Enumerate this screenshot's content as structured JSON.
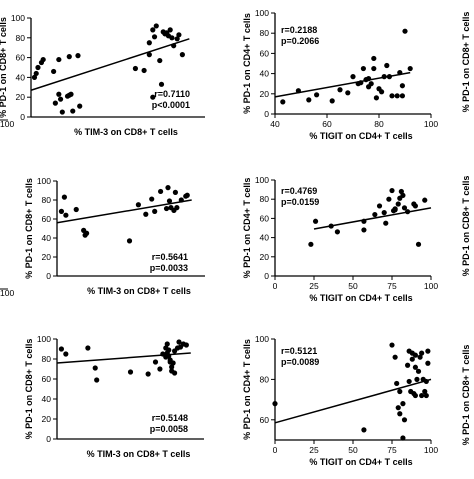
{
  "edge_labels": {
    "left_ticks": [
      "100",
      "100"
    ],
    "right_ylabels": [
      "% PD-1 on CD8+ T cells",
      "% PD-1 on CD8+ T cells",
      "% PD-1 on CD8+ T cells"
    ]
  },
  "chart_data": [
    {
      "type": "scatter",
      "xlabel": "% TIM-3 on CD8+ T cells",
      "ylabel": "% PD-1 on CD8+ T cells",
      "xlim": [
        0,
        100
      ],
      "ylim": [
        0,
        100
      ],
      "xticks": [],
      "yticks": [
        0,
        20,
        40,
        60,
        80,
        100
      ],
      "stats": [
        "r=0.7110",
        "p<0.0001"
      ],
      "fit": [
        [
          0,
          27
        ],
        [
          91,
          79
        ]
      ],
      "points": [
        [
          2,
          40
        ],
        [
          3,
          44
        ],
        [
          4,
          50
        ],
        [
          6,
          55
        ],
        [
          7,
          58
        ],
        [
          13,
          46
        ],
        [
          16,
          58
        ],
        [
          22,
          61
        ],
        [
          27,
          62
        ],
        [
          14,
          14
        ],
        [
          16,
          23
        ],
        [
          17,
          18
        ],
        [
          18,
          5
        ],
        [
          21,
          21
        ],
        [
          23,
          23
        ],
        [
          22,
          22
        ],
        [
          24,
          6
        ],
        [
          28,
          11
        ],
        [
          60,
          49
        ],
        [
          65,
          47
        ],
        [
          68,
          75
        ],
        [
          68,
          63
        ],
        [
          70,
          88
        ],
        [
          71,
          81
        ],
        [
          72,
          92
        ],
        [
          74,
          57
        ],
        [
          76,
          86
        ],
        [
          77,
          84
        ],
        [
          78,
          85
        ],
        [
          79,
          82
        ],
        [
          80,
          88
        ],
        [
          81,
          80
        ],
        [
          82,
          72
        ],
        [
          84,
          79
        ],
        [
          85,
          83
        ],
        [
          87,
          63
        ],
        [
          75,
          33
        ],
        [
          70,
          20
        ]
      ]
    },
    {
      "type": "scatter",
      "xlabel": "% TIGIT on CD4+ T cells",
      "ylabel": "% PD-1 on CD4+ T cells",
      "xlim": [
        40,
        100
      ],
      "ylim": [
        0,
        100
      ],
      "xticks": [
        40,
        60,
        80,
        100
      ],
      "yticks": [
        0,
        20,
        40,
        60,
        80,
        100
      ],
      "stats": [
        "r=0.2188",
        "p=0.2066"
      ],
      "fit": [
        [
          40,
          17
        ],
        [
          92,
          41
        ]
      ],
      "points": [
        [
          43,
          12
        ],
        [
          49,
          23
        ],
        [
          53,
          14
        ],
        [
          56,
          19
        ],
        [
          62,
          13
        ],
        [
          65,
          24
        ],
        [
          68,
          21
        ],
        [
          70,
          37
        ],
        [
          72,
          30
        ],
        [
          73,
          31
        ],
        [
          74,
          45
        ],
        [
          75,
          34
        ],
        [
          76,
          27
        ],
        [
          76,
          35
        ],
        [
          77,
          30
        ],
        [
          78,
          45
        ],
        [
          78,
          55
        ],
        [
          79,
          16
        ],
        [
          80,
          25
        ],
        [
          81,
          22
        ],
        [
          82,
          37
        ],
        [
          83,
          48
        ],
        [
          84,
          37
        ],
        [
          85,
          18
        ],
        [
          87,
          18
        ],
        [
          88,
          41
        ],
        [
          89,
          28
        ],
        [
          89,
          18
        ],
        [
          90,
          82
        ],
        [
          92,
          45
        ]
      ]
    },
    {
      "type": "scatter",
      "xlabel": "% TIM-3 on CD8+ T cells",
      "ylabel": "% PD-1 on CD8+ T cells",
      "xlim": [
        0,
        100
      ],
      "ylim": [
        0,
        100
      ],
      "xticks": [],
      "yticks": [
        0,
        20,
        40,
        60,
        80,
        100
      ],
      "stats": [
        "r=0.5641",
        "p=0.0033"
      ],
      "fit": [
        [
          0,
          56
        ],
        [
          91,
          80
        ]
      ],
      "points": [
        [
          3,
          68
        ],
        [
          5,
          83
        ],
        [
          6,
          64
        ],
        [
          13,
          70
        ],
        [
          18,
          48
        ],
        [
          19,
          43
        ],
        [
          20,
          45
        ],
        [
          49,
          37
        ],
        [
          55,
          75
        ],
        [
          60,
          65
        ],
        [
          64,
          81
        ],
        [
          66,
          68
        ],
        [
          70,
          89
        ],
        [
          74,
          71
        ],
        [
          75,
          93
        ],
        [
          76,
          79
        ],
        [
          77,
          72
        ],
        [
          79,
          69
        ],
        [
          80,
          88
        ],
        [
          81,
          72
        ],
        [
          84,
          80
        ],
        [
          88,
          85
        ],
        [
          87,
          84
        ]
      ]
    },
    {
      "type": "scatter",
      "xlabel": "% TIGIT on CD4+ T cells",
      "ylabel": "% PD-1 on CD4+ T cells",
      "xlim": [
        0,
        100
      ],
      "ylim": [
        0,
        100
      ],
      "xticks": [
        0,
        25,
        50,
        75,
        100
      ],
      "yticks": [
        0,
        20,
        40,
        60,
        80,
        100
      ],
      "stats": [
        "r=0.4769",
        "p=0.0159"
      ],
      "fit": [
        [
          25,
          49
        ],
        [
          100,
          71
        ]
      ],
      "points": [
        [
          23,
          33
        ],
        [
          26,
          57
        ],
        [
          36,
          52
        ],
        [
          40,
          46
        ],
        [
          57,
          57
        ],
        [
          57,
          48
        ],
        [
          64,
          64
        ],
        [
          67,
          73
        ],
        [
          70,
          66
        ],
        [
          71,
          55
        ],
        [
          73,
          80
        ],
        [
          75,
          89
        ],
        [
          76,
          68
        ],
        [
          77,
          69
        ],
        [
          77,
          70
        ],
        [
          79,
          75
        ],
        [
          80,
          81
        ],
        [
          81,
          88
        ],
        [
          82,
          84
        ],
        [
          83,
          71
        ],
        [
          85,
          67
        ],
        [
          89,
          75
        ],
        [
          90,
          73
        ],
        [
          92,
          33
        ],
        [
          96,
          79
        ]
      ]
    },
    {
      "type": "scatter",
      "xlabel": "% TIM-3 on CD8+ T cells",
      "ylabel": "% PD-1 on CD8+ T cells",
      "xlim": [
        0,
        100
      ],
      "ylim": [
        0,
        100
      ],
      "xticks": [],
      "yticks": [
        0,
        20,
        40,
        60,
        80,
        100
      ],
      "stats": [
        "r=0.5148",
        "p=0.0058"
      ],
      "fit": [
        [
          0,
          76
        ],
        [
          91,
          86
        ]
      ],
      "points": [
        [
          3,
          90
        ],
        [
          6,
          85
        ],
        [
          21,
          91
        ],
        [
          26,
          71
        ],
        [
          27,
          59
        ],
        [
          50,
          67
        ],
        [
          62,
          65
        ],
        [
          67,
          77
        ],
        [
          70,
          70
        ],
        [
          72,
          85
        ],
        [
          74,
          82
        ],
        [
          75,
          86
        ],
        [
          75,
          95
        ],
        [
          76,
          83
        ],
        [
          77,
          79
        ],
        [
          77,
          77
        ],
        [
          78,
          68
        ],
        [
          78,
          72
        ],
        [
          79,
          76
        ],
        [
          80,
          66
        ],
        [
          80,
          88
        ],
        [
          82,
          91
        ],
        [
          83,
          97
        ],
        [
          84,
          92
        ],
        [
          86,
          95
        ],
        [
          88,
          94
        ],
        [
          76,
          89
        ],
        [
          74,
          91
        ]
      ]
    },
    {
      "type": "scatter",
      "xlabel": "% TIGIT on CD4+ T cells",
      "ylabel": "% PD-1 on CD4+ T cells",
      "xlim": [
        0,
        100
      ],
      "ylim": [
        50,
        100
      ],
      "xticks": [
        0,
        25,
        50,
        75,
        100
      ],
      "yticks": [
        60,
        80,
        100
      ],
      "stats": [
        "r=0.5121",
        "p=0.0089"
      ],
      "fit": [
        [
          0,
          58.5
        ],
        [
          100,
          80
        ]
      ],
      "points": [
        [
          0,
          68
        ],
        [
          57,
          55
        ],
        [
          75,
          97
        ],
        [
          77,
          91
        ],
        [
          78,
          78
        ],
        [
          79,
          66
        ],
        [
          80,
          74
        ],
        [
          80,
          63
        ],
        [
          82,
          51
        ],
        [
          82,
          68
        ],
        [
          83,
          60
        ],
        [
          85,
          87
        ],
        [
          86,
          94
        ],
        [
          86,
          79
        ],
        [
          87,
          74
        ],
        [
          88,
          93
        ],
        [
          88,
          90
        ],
        [
          89,
          73
        ],
        [
          90,
          72
        ],
        [
          90,
          86
        ],
        [
          90,
          92
        ],
        [
          91,
          80
        ],
        [
          92,
          84
        ],
        [
          93,
          91
        ],
        [
          94,
          93
        ],
        [
          94,
          72
        ],
        [
          95,
          80
        ],
        [
          96,
          74
        ],
        [
          97,
          79
        ],
        [
          98,
          94
        ],
        [
          98,
          88
        ],
        [
          97,
          72
        ]
      ]
    }
  ]
}
